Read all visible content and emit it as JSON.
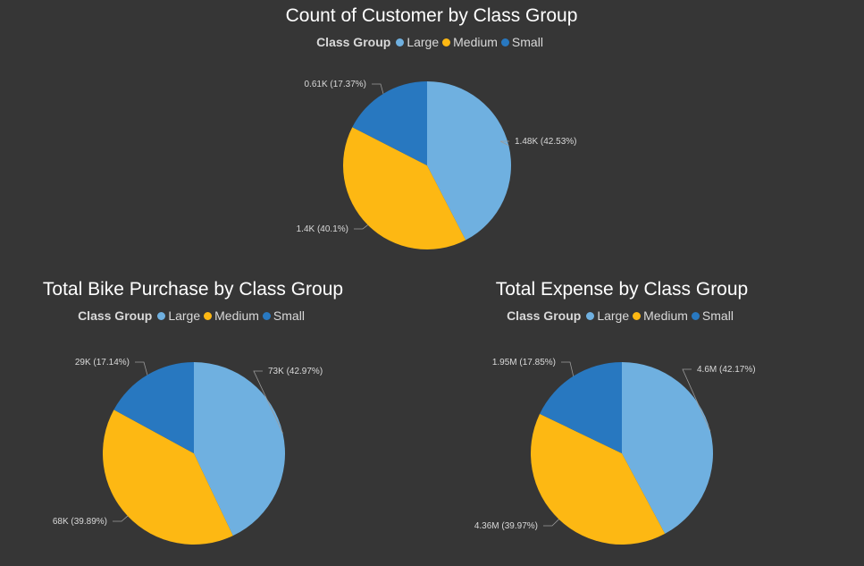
{
  "legend_title": "Class Group",
  "categories": [
    "Large",
    "Medium",
    "Small"
  ],
  "colors": {
    "Large": "#6FB0E0",
    "Medium": "#FDB813",
    "Small": "#2878C0",
    "background": "#363636",
    "leader": "#9a9a9a"
  },
  "chart_data": [
    {
      "type": "pie",
      "title": "Count of Customer by Class Group",
      "categories": [
        "Large",
        "Medium",
        "Small"
      ],
      "values": [
        1480,
        1400,
        610
      ],
      "percentages": [
        42.53,
        40.1,
        17.37
      ],
      "data_labels": [
        "1.48K (42.53%)",
        "1.4K (40.1%)",
        "0.61K (17.37%)"
      ],
      "legend": "top"
    },
    {
      "type": "pie",
      "title": "Total Bike Purchase by Class Group",
      "categories": [
        "Large",
        "Medium",
        "Small"
      ],
      "values": [
        73000,
        68000,
        29000
      ],
      "percentages": [
        42.97,
        39.89,
        17.14
      ],
      "data_labels": [
        "73K (42.97%)",
        "68K (39.89%)",
        "29K (17.14%)"
      ],
      "legend": "top"
    },
    {
      "type": "pie",
      "title": "Total Expense by Class Group",
      "categories": [
        "Large",
        "Medium",
        "Small"
      ],
      "values": [
        4600000,
        4360000,
        1950000
      ],
      "percentages": [
        42.17,
        39.97,
        17.85
      ],
      "data_labels": [
        "4.6M (42.17%)",
        "4.36M (39.97%)",
        "1.95M (17.85%)"
      ],
      "legend": "top"
    }
  ]
}
